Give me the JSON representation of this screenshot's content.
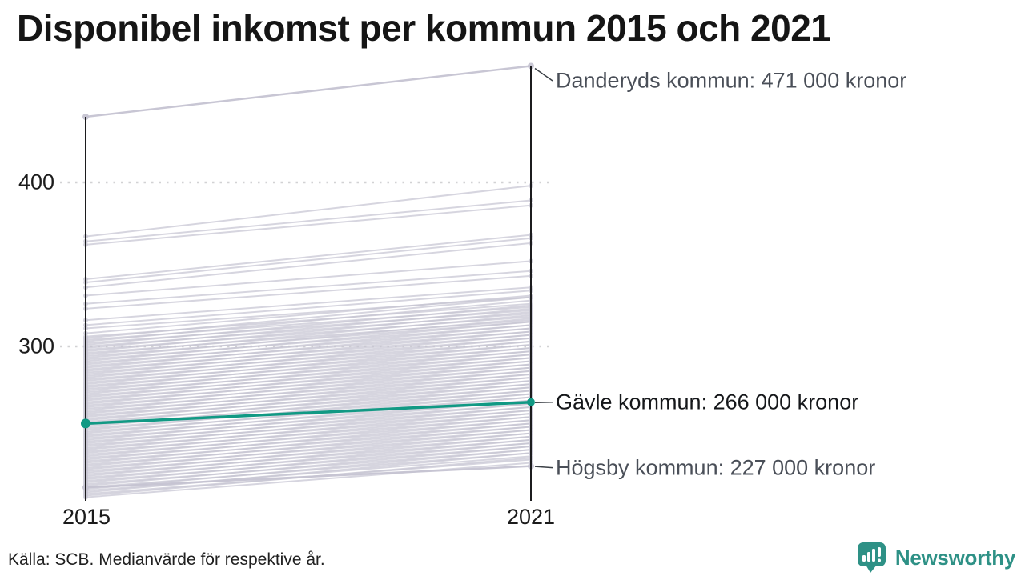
{
  "title": "Disponibel inkomst per kommun 2015 och 2021",
  "footer": {
    "source": "Källa: SCB. Medianvärde för respektive år."
  },
  "branding": {
    "name": "Newsworthy",
    "logo_icon": "bar-chart-speech-bubble-icon",
    "color": "#2e9186"
  },
  "colors": {
    "highlight": "#119984",
    "background_line": "#c6c4d2",
    "axis": "#1c1c1e",
    "gridline": "#d2d2d4",
    "muted_text": "#4a4f58",
    "strong_text": "#15171a"
  },
  "axis": {
    "x_labels": [
      "2015",
      "2021"
    ],
    "y_tick_labels": [
      "400",
      "300"
    ]
  },
  "chart_data": {
    "type": "line",
    "subtype": "slope",
    "title": "Disponibel inkomst per kommun 2015 och 2021",
    "x": [
      "2015",
      "2021"
    ],
    "xlabel": "",
    "ylabel": "",
    "unit": "tusen kronor (median disponibel inkomst)",
    "y_ticks": [
      400,
      300
    ],
    "ylim": [
      206,
      475
    ],
    "grid": "dotted-horizontal",
    "legend": "none",
    "series": [
      {
        "name": "Danderyds kommun",
        "values": [
          440,
          471
        ],
        "highlight": false,
        "label": "Danderyds kommun: 471 000 kronor"
      },
      {
        "name": "Gävle kommun",
        "values": [
          253,
          266
        ],
        "highlight": true,
        "label": "Gävle kommun: 266 000 kronor"
      },
      {
        "name": "Högsby kommun",
        "values": [
          214,
          227
        ],
        "highlight": false,
        "label": "Högsby kommun: 227 000 kronor"
      }
    ],
    "background_lines": [
      [
        367,
        398
      ],
      [
        364,
        389
      ],
      [
        362,
        386
      ],
      [
        341,
        368
      ],
      [
        339,
        366
      ],
      [
        336,
        363
      ],
      [
        331,
        352
      ],
      [
        326,
        346
      ],
      [
        323,
        343
      ],
      [
        316,
        336
      ],
      [
        313,
        334
      ],
      [
        311,
        330
      ],
      [
        308,
        331
      ],
      [
        306,
        326
      ],
      [
        305,
        330
      ],
      [
        304,
        324
      ],
      [
        303,
        328
      ],
      [
        302,
        322
      ],
      [
        301,
        325
      ],
      [
        300,
        320
      ],
      [
        299,
        323
      ],
      [
        298,
        318
      ],
      [
        297,
        321
      ],
      [
        296,
        316
      ],
      [
        295,
        319
      ],
      [
        294,
        315
      ],
      [
        293,
        317
      ],
      [
        292,
        313
      ],
      [
        291,
        315
      ],
      [
        290,
        311
      ],
      [
        289,
        313
      ],
      [
        288,
        309
      ],
      [
        287,
        311
      ],
      [
        286,
        307
      ],
      [
        285,
        309
      ],
      [
        284,
        305
      ],
      [
        283,
        307
      ],
      [
        282,
        303
      ],
      [
        281,
        305
      ],
      [
        280,
        301
      ],
      [
        279,
        303
      ],
      [
        278,
        299
      ],
      [
        277,
        301
      ],
      [
        276,
        297
      ],
      [
        275,
        299
      ],
      [
        274,
        295
      ],
      [
        273,
        297
      ],
      [
        272,
        293
      ],
      [
        271,
        295
      ],
      [
        270,
        291
      ],
      [
        269,
        293
      ],
      [
        268,
        289
      ],
      [
        267,
        291
      ],
      [
        266,
        287
      ],
      [
        265,
        289
      ],
      [
        264,
        285
      ],
      [
        263,
        287
      ],
      [
        262,
        283
      ],
      [
        261,
        285
      ],
      [
        260,
        281
      ],
      [
        259,
        283
      ],
      [
        258,
        279
      ],
      [
        257,
        281
      ],
      [
        256,
        277
      ],
      [
        255,
        279
      ],
      [
        254,
        275
      ],
      [
        253,
        277
      ],
      [
        252,
        273
      ],
      [
        251,
        275
      ],
      [
        250,
        271
      ],
      [
        249,
        273
      ],
      [
        248,
        269
      ],
      [
        247,
        271
      ],
      [
        246,
        267
      ],
      [
        245,
        269
      ],
      [
        244,
        265
      ],
      [
        243,
        267
      ],
      [
        242,
        263
      ],
      [
        241,
        265
      ],
      [
        240,
        261
      ],
      [
        239,
        263
      ],
      [
        238,
        259
      ],
      [
        237,
        261
      ],
      [
        236,
        257
      ],
      [
        235,
        259
      ],
      [
        234,
        255
      ],
      [
        233,
        257
      ],
      [
        232,
        253
      ],
      [
        231,
        255
      ],
      [
        230,
        251
      ],
      [
        229,
        253
      ],
      [
        228,
        249
      ],
      [
        227,
        251
      ],
      [
        226,
        247
      ],
      [
        225,
        249
      ],
      [
        224,
        245
      ],
      [
        223,
        247
      ],
      [
        222,
        243
      ],
      [
        221,
        245
      ],
      [
        220,
        241
      ],
      [
        219,
        243
      ],
      [
        218,
        239
      ],
      [
        217,
        241
      ],
      [
        216,
        237
      ],
      [
        215,
        239
      ],
      [
        214,
        235
      ],
      [
        213,
        237
      ],
      [
        212,
        233
      ],
      [
        211,
        235
      ],
      [
        210,
        231
      ],
      [
        209,
        232
      ],
      [
        208,
        229
      ]
    ]
  }
}
